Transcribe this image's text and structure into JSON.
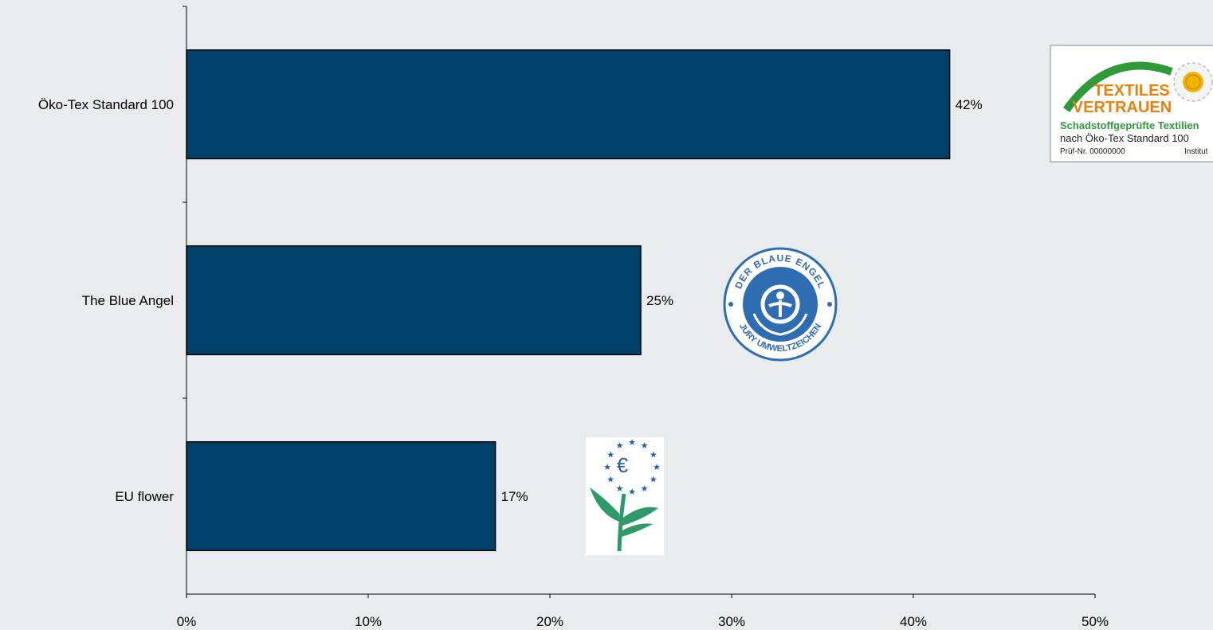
{
  "chart_data": {
    "type": "bar",
    "orientation": "horizontal",
    "categories": [
      "Öko-Tex Standard 100",
      "The Blue Angel",
      "EU flower"
    ],
    "values": [
      42,
      25,
      17
    ],
    "value_labels": [
      "42%",
      "25%",
      "17%"
    ],
    "xlim": [
      0,
      50
    ],
    "x_ticks": [
      "0%",
      "10%",
      "20%",
      "30%",
      "40%",
      "50%"
    ],
    "xlabel": "",
    "ylabel": "",
    "grid": false,
    "bar_color": "#00416a"
  },
  "logos": {
    "oekotex": {
      "icon": "oeko-tex-logo",
      "line1": "TEXTILES",
      "line2": "VERTRAUEN",
      "line3": "Schadstoffgeprüfte Textilien",
      "line4": "nach Öko-Tex Standard 100",
      "line5a": "Prüf-Nr. 00000000",
      "line5b": "Institut"
    },
    "blue_angel": {
      "icon": "blue-angel-logo",
      "top_text": "DER BLAUE ENGEL",
      "bottom_text": "JURY UMWELTZEICHEN"
    },
    "eu_flower": {
      "icon": "eu-flower-logo",
      "symbol": "€"
    }
  },
  "colors": {
    "background": "#e8ecef",
    "bar": "#00416a",
    "oeko_green": "#2e9a3a",
    "oeko_orange": "#e8820c",
    "blue_angel": "#2f6db3",
    "eu_blue": "#1f5fae",
    "eu_green": "#2e9a6a"
  }
}
